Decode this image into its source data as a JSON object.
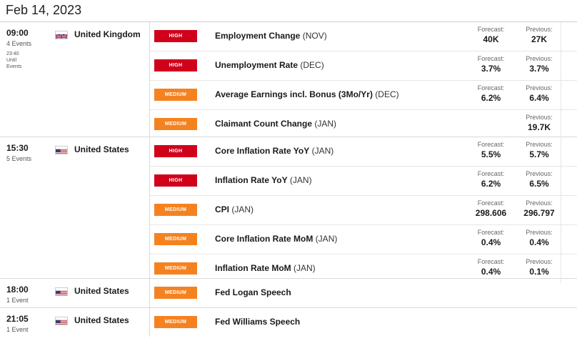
{
  "date_header": "Feb 14, 2023",
  "colors": {
    "high": "#d0021b",
    "medium": "#f58220"
  },
  "groups": [
    {
      "time": "09:00",
      "events_count": "4 Events",
      "until_line1": "23:40",
      "until_line2": "Until",
      "until_line3": "Events",
      "country": "United Kingdom",
      "flag_icon": "uk-flag-icon",
      "events": [
        {
          "impact": "HIGH",
          "name": "Employment Change",
          "period": "(NOV)",
          "forecast_label": "Forecast:",
          "forecast": "40K",
          "previous_label": "Previous:",
          "previous": "27K"
        },
        {
          "impact": "HIGH",
          "name": "Unemployment Rate",
          "period": "(DEC)",
          "forecast_label": "Forecast:",
          "forecast": "3.7%",
          "previous_label": "Previous:",
          "previous": "3.7%"
        },
        {
          "impact": "MEDIUM",
          "name": "Average Earnings incl. Bonus (3Mo/Yr)",
          "period": "(DEC)",
          "forecast_label": "Forecast:",
          "forecast": "6.2%",
          "previous_label": "Previous:",
          "previous": "6.4%"
        },
        {
          "impact": "MEDIUM",
          "name": "Claimant Count Change",
          "period": "(JAN)",
          "forecast_label": "",
          "forecast": "",
          "previous_label": "Previous:",
          "previous": "19.7K"
        }
      ]
    },
    {
      "time": "15:30",
      "events_count": "5 Events",
      "country": "United States",
      "flag_icon": "us-flag-icon",
      "events": [
        {
          "impact": "HIGH",
          "name": "Core Inflation Rate YoY",
          "period": "(JAN)",
          "forecast_label": "Forecast:",
          "forecast": "5.5%",
          "previous_label": "Previous:",
          "previous": "5.7%"
        },
        {
          "impact": "HIGH",
          "name": "Inflation Rate YoY",
          "period": "(JAN)",
          "forecast_label": "Forecast:",
          "forecast": "6.2%",
          "previous_label": "Previous:",
          "previous": "6.5%"
        },
        {
          "impact": "MEDIUM",
          "name": "CPI",
          "period": "(JAN)",
          "forecast_label": "Forecast:",
          "forecast": "298.606",
          "previous_label": "Previous:",
          "previous": "296.797"
        },
        {
          "impact": "MEDIUM",
          "name": "Core Inflation Rate MoM",
          "period": "(JAN)",
          "forecast_label": "Forecast:",
          "forecast": "0.4%",
          "previous_label": "Previous:",
          "previous": "0.4%"
        },
        {
          "impact": "MEDIUM",
          "name": "Inflation Rate MoM",
          "period": "(JAN)",
          "forecast_label": "Forecast:",
          "forecast": "0.4%",
          "previous_label": "Previous:",
          "previous": "0.1%"
        }
      ]
    },
    {
      "time": "18:00",
      "events_count": "1 Event",
      "country": "United States",
      "flag_icon": "us-flag-icon",
      "events": [
        {
          "impact": "MEDIUM",
          "name": "Fed Logan Speech",
          "period": ""
        }
      ]
    },
    {
      "time": "21:05",
      "events_count": "1 Event",
      "country": "United States",
      "flag_icon": "us-flag-icon",
      "events": [
        {
          "impact": "MEDIUM",
          "name": "Fed Williams Speech",
          "period": ""
        }
      ]
    }
  ]
}
